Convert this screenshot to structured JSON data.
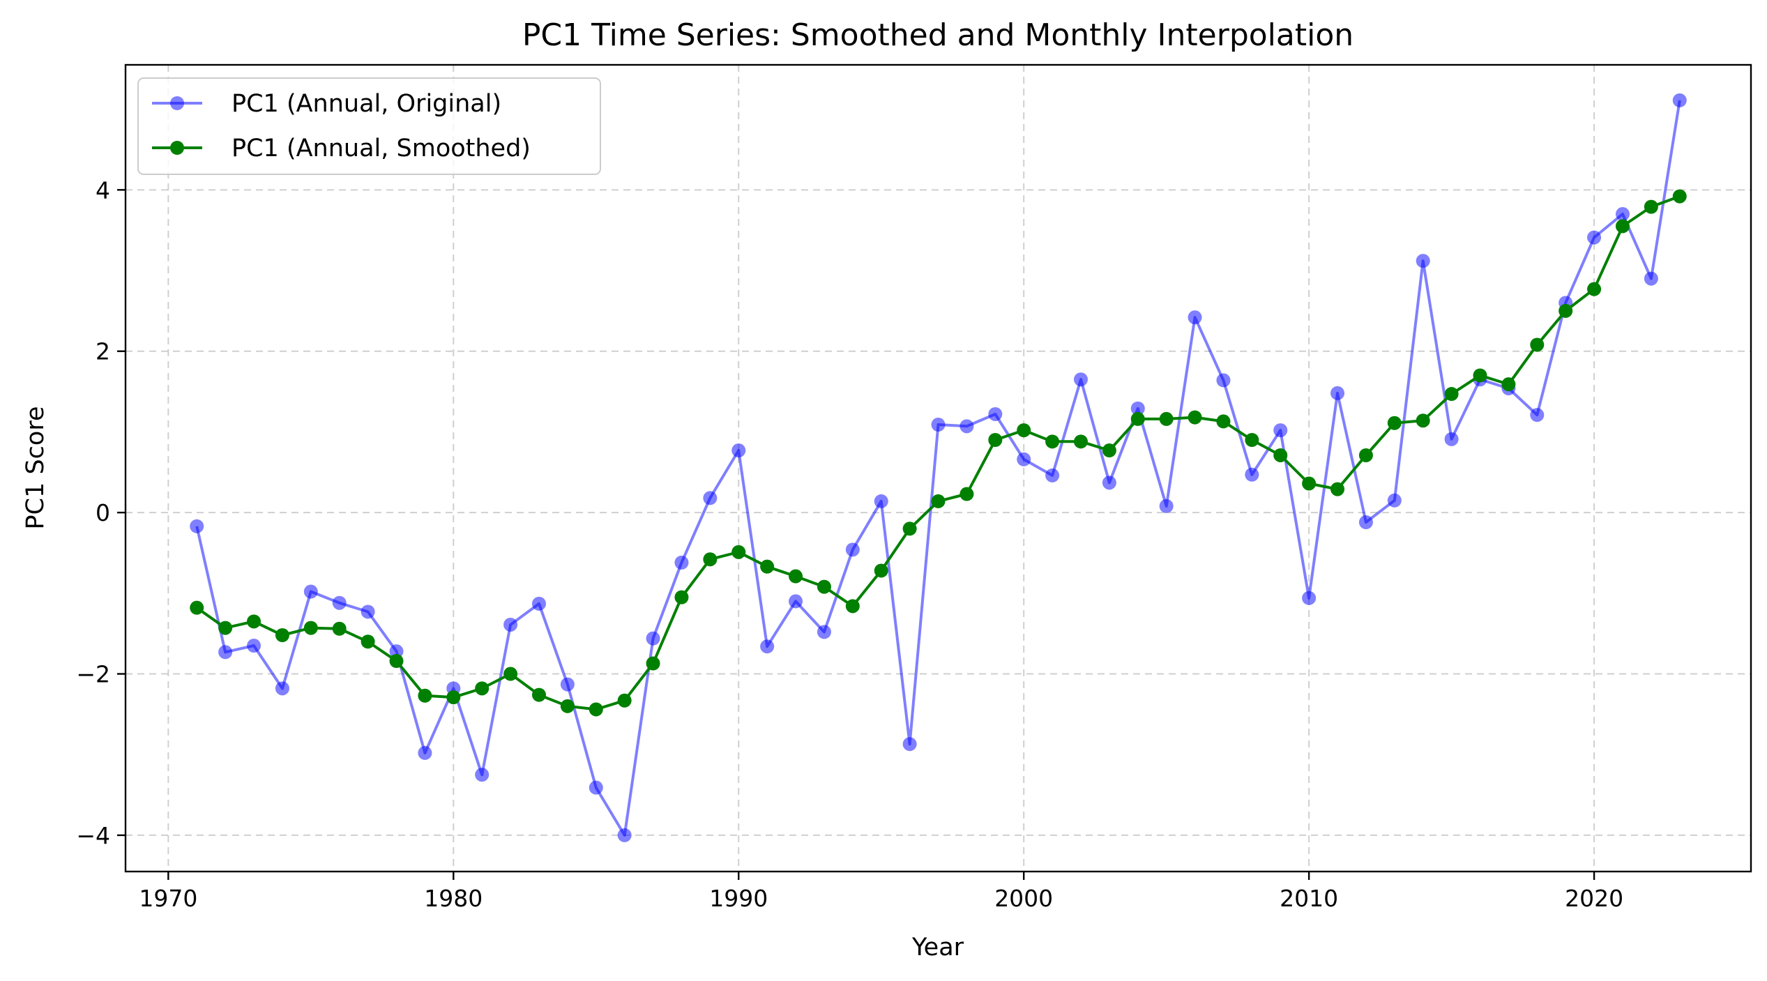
{
  "chart_data": {
    "type": "line",
    "title": "PC1 Time Series: Smoothed and Monthly Interpolation",
    "xlabel": "Year",
    "ylabel": "PC1 Score",
    "xlim": [
      1968.5,
      1925.5
    ],
    "ylim": [
      -4.45,
      5.55
    ],
    "xticks": [
      1970,
      1980,
      1990,
      2000,
      2010,
      2020
    ],
    "yticks": [
      -4,
      -2,
      0,
      2,
      4
    ],
    "xtick_labels": [
      "1970",
      "1980",
      "1990",
      "2000",
      "2010",
      "2020"
    ],
    "ytick_labels": [
      "−4",
      "−2",
      "0",
      "2",
      "4"
    ],
    "grid": true,
    "legend_position": "top-left",
    "x": [
      1971,
      1972,
      1973,
      1974,
      1975,
      1976,
      1977,
      1978,
      1979,
      1980,
      1981,
      1982,
      1983,
      1984,
      1985,
      1986,
      1987,
      1988,
      1989,
      1990,
      1991,
      1992,
      1993,
      1994,
      1995,
      1996,
      1997,
      1998,
      1999,
      2000,
      2001,
      2002,
      2003,
      2004,
      2005,
      2006,
      2007,
      2008,
      2009,
      2010,
      2011,
      2012,
      2013,
      2014,
      2015,
      2016,
      2017,
      2018,
      2019,
      2020,
      2021,
      2022,
      2023
    ],
    "series": [
      {
        "name": "PC1 (Annual, Original)",
        "color": "#0000ff",
        "opacity": 0.5,
        "values": [
          -0.17,
          -1.73,
          -1.65,
          -2.18,
          -0.98,
          -1.12,
          -1.23,
          -1.72,
          -2.98,
          -2.18,
          -3.25,
          -1.39,
          -1.13,
          -2.13,
          -3.41,
          -4.0,
          -1.56,
          -0.62,
          0.18,
          0.77,
          -1.66,
          -1.1,
          -1.48,
          -0.46,
          0.14,
          -2.87,
          1.09,
          1.07,
          1.22,
          0.66,
          0.46,
          1.65,
          0.37,
          1.29,
          0.08,
          2.42,
          1.64,
          0.47,
          1.02,
          -1.06,
          1.48,
          -0.12,
          0.15,
          3.12,
          0.91,
          1.65,
          1.54,
          1.21,
          2.6,
          3.41,
          3.7,
          2.9,
          5.11
        ]
      },
      {
        "name": "PC1 (Annual, Smoothed)",
        "color": "#008000",
        "opacity": 1,
        "values": [
          -1.18,
          -1.43,
          -1.35,
          -1.52,
          -1.43,
          -1.44,
          -1.6,
          -1.84,
          -2.27,
          -2.29,
          -2.18,
          -2.0,
          -2.26,
          -2.4,
          -2.44,
          -2.33,
          -1.87,
          -1.05,
          -0.58,
          -0.49,
          -0.67,
          -0.79,
          -0.92,
          -1.16,
          -0.72,
          -0.2,
          0.14,
          0.23,
          0.9,
          1.02,
          0.88,
          0.88,
          0.77,
          1.16,
          1.16,
          1.18,
          1.13,
          0.9,
          0.71,
          0.36,
          0.29,
          0.71,
          1.11,
          1.14,
          1.47,
          1.7,
          1.59,
          2.08,
          2.5,
          2.77,
          3.55,
          3.79,
          3.92
        ]
      }
    ]
  }
}
